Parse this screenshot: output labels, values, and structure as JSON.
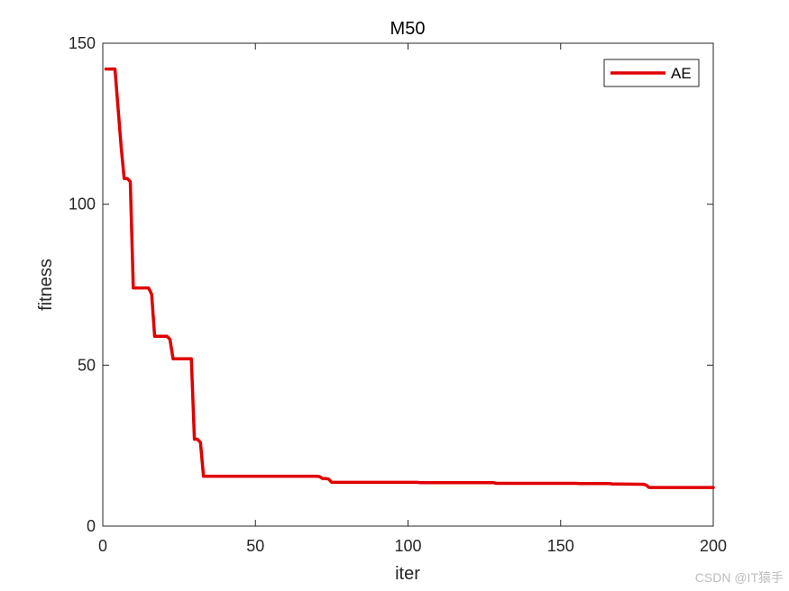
{
  "chart_data": {
    "type": "line",
    "title": "M50",
    "xlabel": "iter",
    "ylabel": "fitness",
    "xlim": [
      0,
      200
    ],
    "ylim": [
      0,
      150
    ],
    "xticks": [
      0,
      50,
      100,
      150,
      200
    ],
    "yticks": [
      0,
      50,
      100,
      150
    ],
    "grid": false,
    "legend_position": "top-right",
    "series": [
      {
        "name": "AE",
        "color": "#e00000",
        "x": [
          1,
          4,
          5,
          6,
          7,
          8,
          9,
          10,
          11,
          12,
          13,
          14,
          15,
          16,
          17,
          18,
          19,
          20,
          21,
          22,
          23,
          24,
          25,
          26,
          27,
          28,
          29,
          30,
          31,
          32,
          33,
          34,
          40,
          50,
          60,
          70,
          71,
          72,
          73,
          74,
          75,
          76,
          80,
          90,
          100,
          103,
          104,
          110,
          120,
          128,
          129,
          130,
          140,
          150,
          155,
          156,
          160,
          166,
          167,
          170,
          175,
          177,
          178,
          179,
          180,
          190,
          200
        ],
        "y": [
          142,
          142,
          130,
          118,
          108,
          108,
          107,
          74,
          74,
          74,
          74,
          74,
          74,
          72,
          59,
          59,
          59,
          59,
          59,
          58,
          52,
          52,
          52,
          52,
          52,
          52,
          52,
          27,
          27,
          26,
          15.5,
          15.5,
          15.5,
          15.5,
          15.5,
          15.5,
          15.4,
          14.8,
          14.8,
          14.6,
          13.6,
          13.6,
          13.6,
          13.6,
          13.6,
          13.6,
          13.5,
          13.5,
          13.5,
          13.5,
          13.3,
          13.3,
          13.3,
          13.3,
          13.3,
          13.2,
          13.2,
          13.2,
          13.1,
          13.1,
          13,
          13,
          12.8,
          12,
          12,
          12,
          12
        ]
      }
    ]
  },
  "watermark": {
    "text": "CSDN @IT猿手"
  }
}
